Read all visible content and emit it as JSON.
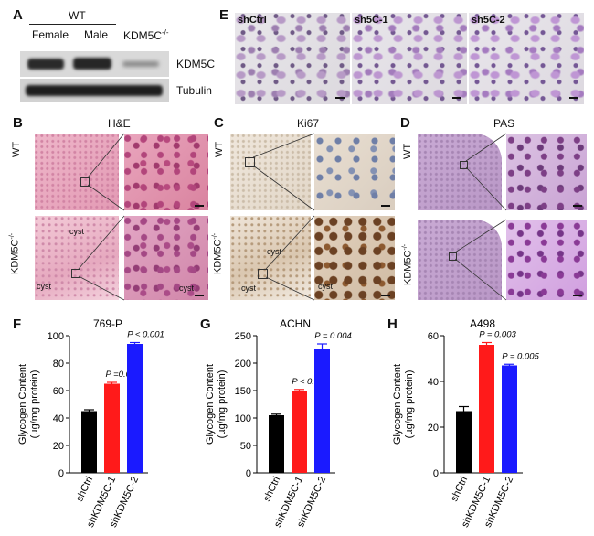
{
  "panels": {
    "a": "A",
    "b": "B",
    "c": "C",
    "d": "D",
    "e": "E",
    "f": "F",
    "g": "G",
    "h": "H"
  },
  "panel_a": {
    "group": "WT",
    "col1": "Female",
    "col2": "Male",
    "col3": "KDM5C",
    "col3_sup": "-/-",
    "band1": "KDM5C",
    "band2": "Tubulin"
  },
  "panel_b": {
    "title": "H&E",
    "row1": "WT",
    "row2": "KDM5C",
    "row2_sup": "-/-",
    "cyst1": "cyst",
    "cyst2": "cyst",
    "cyst3": "cyst"
  },
  "panel_c": {
    "title": "Ki67",
    "row1": "WT",
    "row2": "KDM5C",
    "row2_sup": "-/-",
    "cyst1": "cyst",
    "cyst2": "cyst",
    "cyst3": "cyst"
  },
  "panel_d": {
    "title": "PAS",
    "row1": "WT",
    "row2": "KDM5C",
    "row2_sup": "-/-"
  },
  "panel_e": {
    "img1": "shCtrl",
    "img2": "sh5C-1",
    "img3": "sh5C-2"
  },
  "chart_data": [
    {
      "type": "bar",
      "title": "769-P",
      "ylabel": "Glycogen Content (µg/mg protein)",
      "categories": [
        "shCtrl",
        "shKDM5C-1",
        "shKDM5C-2"
      ],
      "values": [
        45,
        65,
        94
      ],
      "errors": [
        1,
        1,
        1
      ],
      "colors": [
        "#000000",
        "#ff1a1a",
        "#1a1aff"
      ],
      "ylim": [
        0,
        100
      ],
      "yticks": [
        0,
        20,
        40,
        60,
        80,
        100
      ],
      "annotations": [
        "",
        "P =0.001",
        "P < 0.001"
      ]
    },
    {
      "type": "bar",
      "title": "ACHN",
      "ylabel": "Glycogen Content (µg/mg protein)",
      "categories": [
        "shCtrl",
        "shKDM5C-1",
        "shKDM5C-2"
      ],
      "values": [
        105,
        150,
        225
      ],
      "errors": [
        2,
        2,
        10
      ],
      "colors": [
        "#000000",
        "#ff1a1a",
        "#1a1aff"
      ],
      "ylim": [
        0,
        250
      ],
      "yticks": [
        0,
        50,
        100,
        150,
        200,
        250
      ],
      "annotations": [
        "",
        "P < 0.001",
        "P = 0.004"
      ]
    },
    {
      "type": "bar",
      "title": "A498",
      "ylabel": "Glycogen Content (µg/mg protein)",
      "categories": [
        "shCtrl",
        "shKDM5C-1",
        "shKDM5C-2"
      ],
      "values": [
        27,
        56,
        47
      ],
      "errors": [
        2,
        1,
        0.5
      ],
      "colors": [
        "#000000",
        "#ff1a1a",
        "#1a1aff"
      ],
      "ylim": [
        0,
        60
      ],
      "yticks": [
        0,
        20,
        40,
        60
      ],
      "annotations": [
        "",
        "P = 0.003",
        "P = 0.005"
      ]
    }
  ]
}
